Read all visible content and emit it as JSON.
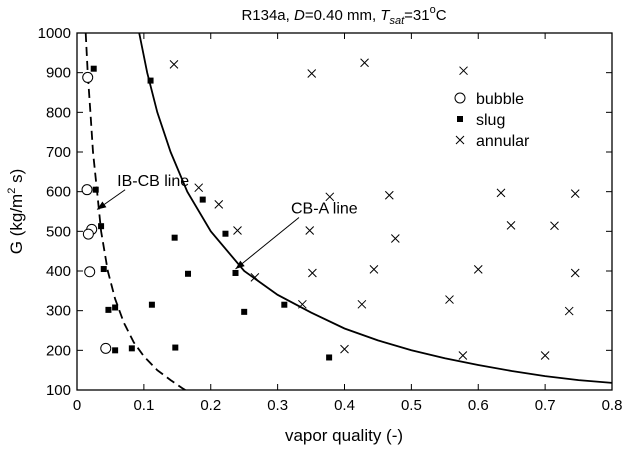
{
  "chart_data": {
    "type": "scatter",
    "title": {
      "prefix": "R134a, ",
      "d_symbol": "D",
      "d_value": "=0.40 mm, ",
      "t_symbol": "T",
      "t_subscript": "sat",
      "t_value": "=31",
      "t_superscript": "o",
      "t_unit": "C"
    },
    "xlabel": "vapor quality (-)",
    "ylabel": {
      "main": "G (kg/m",
      "superscript": "2",
      "suffix": " s)"
    },
    "xlim": [
      0,
      0.8
    ],
    "ylim": [
      100,
      1000
    ],
    "x_ticks": [
      0,
      0.1,
      0.2,
      0.3,
      0.4,
      0.5,
      0.6,
      0.7,
      0.8
    ],
    "x_tick_labels": [
      "0",
      "0.1",
      "0.2",
      "0.3",
      "0.4",
      "0.5",
      "0.6",
      "0.7",
      "0.8"
    ],
    "y_ticks": [
      100,
      200,
      300,
      400,
      500,
      600,
      700,
      800,
      900,
      1000
    ],
    "y_tick_labels": [
      "100",
      "200",
      "300",
      "400",
      "500",
      "600",
      "700",
      "800",
      "900",
      "1000"
    ],
    "grid": false,
    "legend_position": "top-right",
    "series": [
      {
        "name": "bubble",
        "marker": "open-circle",
        "points": [
          {
            "x": 0.016,
            "y": 888
          },
          {
            "x": 0.015,
            "y": 605
          },
          {
            "x": 0.022,
            "y": 505
          },
          {
            "x": 0.017,
            "y": 493
          },
          {
            "x": 0.019,
            "y": 398
          },
          {
            "x": 0.043,
            "y": 205
          }
        ]
      },
      {
        "name": "slug",
        "marker": "filled-square",
        "points": [
          {
            "x": 0.025,
            "y": 910
          },
          {
            "x": 0.11,
            "y": 880
          },
          {
            "x": 0.028,
            "y": 605
          },
          {
            "x": 0.188,
            "y": 580
          },
          {
            "x": 0.036,
            "y": 513
          },
          {
            "x": 0.222,
            "y": 494
          },
          {
            "x": 0.146,
            "y": 484
          },
          {
            "x": 0.04,
            "y": 405
          },
          {
            "x": 0.237,
            "y": 395
          },
          {
            "x": 0.166,
            "y": 393
          },
          {
            "x": 0.112,
            "y": 315
          },
          {
            "x": 0.31,
            "y": 315
          },
          {
            "x": 0.057,
            "y": 308
          },
          {
            "x": 0.047,
            "y": 302
          },
          {
            "x": 0.25,
            "y": 297
          },
          {
            "x": 0.147,
            "y": 207
          },
          {
            "x": 0.082,
            "y": 205
          },
          {
            "x": 0.057,
            "y": 200
          },
          {
            "x": 0.377,
            "y": 182
          }
        ]
      },
      {
        "name": "annular",
        "marker": "cross",
        "points": [
          {
            "x": 0.145,
            "y": 921
          },
          {
            "x": 0.43,
            "y": 925
          },
          {
            "x": 0.351,
            "y": 898
          },
          {
            "x": 0.578,
            "y": 905
          },
          {
            "x": 0.182,
            "y": 610
          },
          {
            "x": 0.212,
            "y": 568
          },
          {
            "x": 0.378,
            "y": 587
          },
          {
            "x": 0.467,
            "y": 591
          },
          {
            "x": 0.634,
            "y": 597
          },
          {
            "x": 0.745,
            "y": 595
          },
          {
            "x": 0.24,
            "y": 502
          },
          {
            "x": 0.348,
            "y": 502
          },
          {
            "x": 0.476,
            "y": 482
          },
          {
            "x": 0.649,
            "y": 515
          },
          {
            "x": 0.714,
            "y": 514
          },
          {
            "x": 0.266,
            "y": 384
          },
          {
            "x": 0.352,
            "y": 395
          },
          {
            "x": 0.444,
            "y": 404
          },
          {
            "x": 0.6,
            "y": 404
          },
          {
            "x": 0.745,
            "y": 395
          },
          {
            "x": 0.337,
            "y": 316
          },
          {
            "x": 0.426,
            "y": 316
          },
          {
            "x": 0.557,
            "y": 328
          },
          {
            "x": 0.736,
            "y": 299
          },
          {
            "x": 0.4,
            "y": 203
          },
          {
            "x": 0.577,
            "y": 187
          },
          {
            "x": 0.7,
            "y": 187
          }
        ]
      }
    ],
    "transition_lines": [
      {
        "label": "IB-CB line",
        "style": "dashed",
        "points": [
          {
            "x": 0.013,
            "y": 1000
          },
          {
            "x": 0.016,
            "y": 900
          },
          {
            "x": 0.02,
            "y": 800
          },
          {
            "x": 0.024,
            "y": 700
          },
          {
            "x": 0.03,
            "y": 600
          },
          {
            "x": 0.036,
            "y": 500
          },
          {
            "x": 0.046,
            "y": 400
          },
          {
            "x": 0.057,
            "y": 330
          },
          {
            "x": 0.07,
            "y": 270
          },
          {
            "x": 0.085,
            "y": 220
          },
          {
            "x": 0.1,
            "y": 185
          },
          {
            "x": 0.12,
            "y": 150
          },
          {
            "x": 0.14,
            "y": 125
          },
          {
            "x": 0.157,
            "y": 105
          },
          {
            "x": 0.162,
            "y": 100
          }
        ],
        "label_at": {
          "x": 0.06,
          "y": 630
        },
        "arrow_tip": {
          "x": 0.03,
          "y": 555
        }
      },
      {
        "label": "CB-A line",
        "style": "solid",
        "points": [
          {
            "x": 0.093,
            "y": 1000
          },
          {
            "x": 0.105,
            "y": 900
          },
          {
            "x": 0.12,
            "y": 800
          },
          {
            "x": 0.14,
            "y": 700
          },
          {
            "x": 0.165,
            "y": 600
          },
          {
            "x": 0.2,
            "y": 500
          },
          {
            "x": 0.25,
            "y": 400
          },
          {
            "x": 0.3,
            "y": 340
          },
          {
            "x": 0.35,
            "y": 295
          },
          {
            "x": 0.4,
            "y": 255
          },
          {
            "x": 0.45,
            "y": 225
          },
          {
            "x": 0.5,
            "y": 200
          },
          {
            "x": 0.55,
            "y": 180
          },
          {
            "x": 0.6,
            "y": 163
          },
          {
            "x": 0.65,
            "y": 148
          },
          {
            "x": 0.7,
            "y": 135
          },
          {
            "x": 0.75,
            "y": 125
          },
          {
            "x": 0.8,
            "y": 118
          }
        ],
        "label_at": {
          "x": 0.32,
          "y": 560
        },
        "arrow_tip": {
          "x": 0.237,
          "y": 405
        }
      }
    ]
  }
}
